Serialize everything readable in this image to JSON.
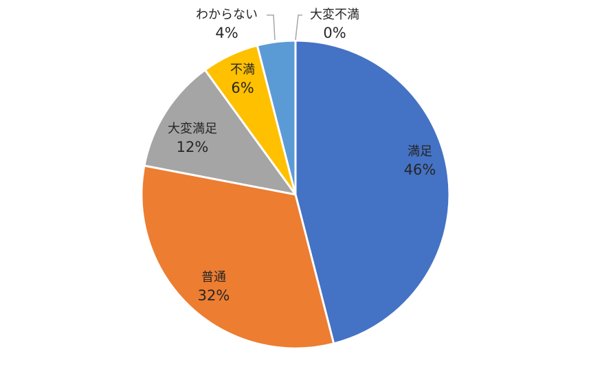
{
  "chart_data": {
    "type": "pie",
    "title": "",
    "slices": [
      {
        "category": "満足",
        "label": "46%",
        "value": 46,
        "color": "#4472C4"
      },
      {
        "category": "普通",
        "label": "32%",
        "value": 32,
        "color": "#ED7D31"
      },
      {
        "category": "大変満足",
        "label": "12%",
        "value": 12,
        "color": "#A5A5A5"
      },
      {
        "category": "不満",
        "label": "6%",
        "value": 6,
        "color": "#FFC000"
      },
      {
        "category": "わからない",
        "label": "4%",
        "value": 4,
        "color": "#5B9BD5"
      },
      {
        "category": "大変不満",
        "label": "0%",
        "value": 0,
        "color": "#70AD47"
      }
    ],
    "legend": "none",
    "data_labels": "category and percentage"
  }
}
